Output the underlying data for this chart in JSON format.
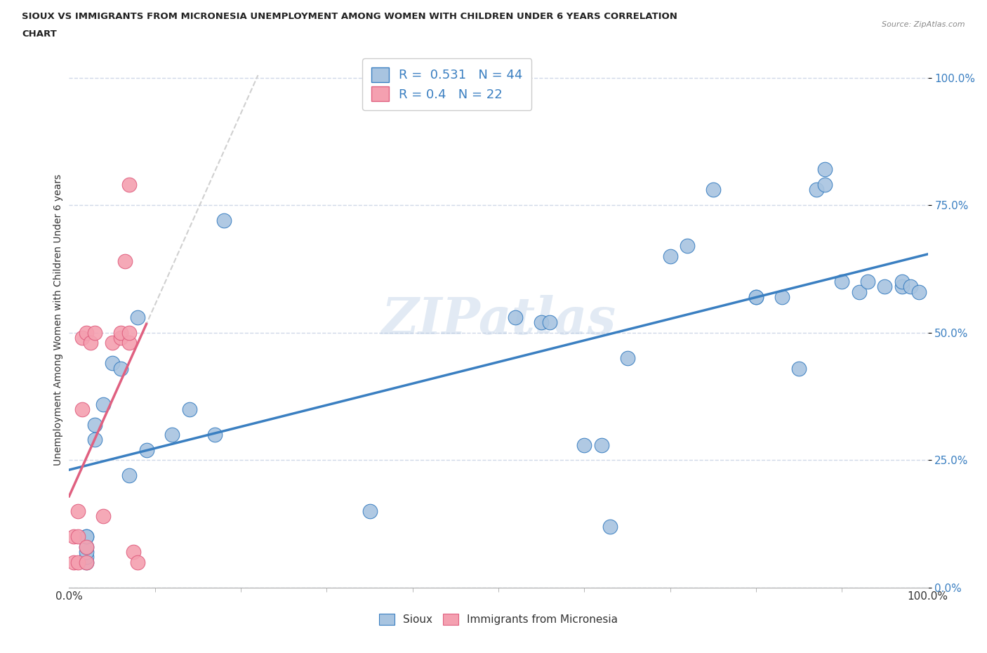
{
  "title_line1": "SIOUX VS IMMIGRANTS FROM MICRONESIA UNEMPLOYMENT AMONG WOMEN WITH CHILDREN UNDER 6 YEARS CORRELATION",
  "title_line2": "CHART",
  "source_text": "Source: ZipAtlas.com",
  "ylabel": "Unemployment Among Women with Children Under 6 years",
  "watermark": "ZIPatlas",
  "sioux_R": 0.531,
  "sioux_N": 44,
  "micronesia_R": 0.4,
  "micronesia_N": 22,
  "sioux_color": "#a8c4e0",
  "micronesia_color": "#f4a0b0",
  "trendline_sioux_color": "#3a7fc1",
  "trendline_micronesia_color": "#e06080",
  "trendline_micronesia_dash_color": "#c8c8c8",
  "grid_color": "#d0d8e8",
  "background_color": "#ffffff",
  "legend_text_color": "#3a7fc1",
  "sioux_x": [
    0.02,
    0.02,
    0.02,
    0.02,
    0.02,
    0.02,
    0.03,
    0.03,
    0.04,
    0.05,
    0.06,
    0.07,
    0.08,
    0.09,
    0.12,
    0.14,
    0.17,
    0.18,
    0.35,
    0.52,
    0.55,
    0.56,
    0.6,
    0.62,
    0.63,
    0.65,
    0.7,
    0.72,
    0.75,
    0.8,
    0.8,
    0.83,
    0.85,
    0.87,
    0.88,
    0.88,
    0.9,
    0.92,
    0.93,
    0.95,
    0.97,
    0.97,
    0.98,
    0.99
  ],
  "sioux_y": [
    0.05,
    0.06,
    0.07,
    0.08,
    0.1,
    0.1,
    0.29,
    0.32,
    0.36,
    0.44,
    0.43,
    0.22,
    0.53,
    0.27,
    0.3,
    0.35,
    0.3,
    0.72,
    0.15,
    0.53,
    0.52,
    0.52,
    0.28,
    0.28,
    0.12,
    0.45,
    0.65,
    0.67,
    0.78,
    0.57,
    0.57,
    0.57,
    0.43,
    0.78,
    0.82,
    0.79,
    0.6,
    0.58,
    0.6,
    0.59,
    0.59,
    0.6,
    0.59,
    0.58
  ],
  "micronesia_x": [
    0.005,
    0.005,
    0.01,
    0.01,
    0.01,
    0.015,
    0.015,
    0.02,
    0.02,
    0.02,
    0.025,
    0.03,
    0.04,
    0.05,
    0.06,
    0.06,
    0.065,
    0.07,
    0.07,
    0.07,
    0.075,
    0.08
  ],
  "micronesia_y": [
    0.05,
    0.1,
    0.05,
    0.1,
    0.15,
    0.35,
    0.49,
    0.05,
    0.08,
    0.5,
    0.48,
    0.5,
    0.14,
    0.48,
    0.49,
    0.5,
    0.64,
    0.79,
    0.48,
    0.5,
    0.07,
    0.05
  ],
  "yticks": [
    0.0,
    0.25,
    0.5,
    0.75,
    1.0
  ],
  "ytick_labels": [
    "0.0%",
    "25.0%",
    "50.0%",
    "75.0%",
    "100.0%"
  ],
  "xtick_minor_positions": [
    0.1,
    0.2,
    0.3,
    0.4,
    0.5,
    0.6,
    0.7,
    0.8,
    0.9
  ],
  "xlim": [
    0.0,
    1.0
  ],
  "ylim": [
    0.0,
    1.05
  ]
}
